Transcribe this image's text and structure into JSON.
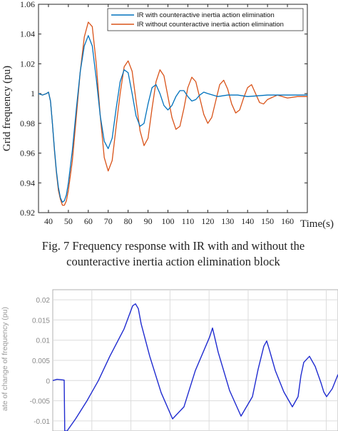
{
  "chart_data": [
    {
      "type": "line",
      "title": "",
      "xlabel": "Time(s)",
      "ylabel": "Grid frequency (pu)",
      "xlim": [
        35,
        170
      ],
      "ylim": [
        0.92,
        1.06
      ],
      "xticks": [
        "40",
        "50",
        "60",
        "70",
        "80",
        "90",
        "100",
        "110",
        "120",
        "130",
        "140",
        "150",
        "160"
      ],
      "yticks": [
        "0.92",
        "0.94",
        "0.96",
        "0.98",
        "1",
        "1.02",
        "1.04",
        "1.06"
      ],
      "legend_position": "top-right",
      "grid": false,
      "series": [
        {
          "name": "IR with counteractive inertia action elimination",
          "color": "#0072bd",
          "x": [
            35,
            37,
            39,
            40,
            41,
            42,
            43,
            44,
            45,
            46,
            47,
            48,
            49,
            50,
            52,
            54,
            56,
            58,
            60,
            62,
            64,
            66,
            68,
            70,
            72,
            74,
            76,
            78,
            80,
            82,
            84,
            86,
            88,
            90,
            92,
            94,
            96,
            98,
            100,
            102,
            104,
            106,
            108,
            110,
            112,
            114,
            116,
            118,
            120,
            125,
            130,
            135,
            140,
            150,
            160,
            170
          ],
          "y": [
            1.0,
            0.999,
            1.0,
            1.001,
            0.995,
            0.98,
            0.963,
            0.948,
            0.937,
            0.93,
            0.927,
            0.928,
            0.932,
            0.94,
            0.962,
            0.99,
            1.015,
            1.032,
            1.039,
            1.032,
            1.01,
            0.985,
            0.968,
            0.963,
            0.97,
            0.99,
            1.008,
            1.016,
            1.014,
            1.0,
            0.985,
            0.978,
            0.98,
            0.993,
            1.004,
            1.006,
            1.0,
            0.992,
            0.989,
            0.992,
            0.998,
            1.002,
            1.002,
            0.998,
            0.995,
            0.996,
            0.999,
            1.001,
            1.0,
            0.998,
            0.999,
            0.999,
            0.998,
            0.999,
            0.999,
            0.999
          ]
        },
        {
          "name": "IR without counteractive inertia action elimination",
          "color": "#d95319",
          "x": [
            35,
            37,
            39,
            40,
            41,
            42,
            43,
            44,
            45,
            46,
            47,
            48,
            49,
            50,
            52,
            54,
            56,
            58,
            60,
            62,
            64,
            66,
            68,
            70,
            72,
            74,
            76,
            78,
            80,
            82,
            84,
            86,
            88,
            90,
            92,
            94,
            96,
            98,
            100,
            102,
            104,
            106,
            108,
            110,
            112,
            114,
            116,
            118,
            120,
            122,
            124,
            126,
            128,
            130,
            132,
            134,
            136,
            138,
            140,
            142,
            144,
            146,
            148,
            150,
            155,
            160,
            165,
            170
          ],
          "y": [
            1.0,
            0.999,
            1.0,
            1.001,
            0.995,
            0.98,
            0.962,
            0.947,
            0.935,
            0.929,
            0.925,
            0.925,
            0.928,
            0.935,
            0.955,
            0.985,
            1.015,
            1.038,
            1.048,
            1.045,
            1.02,
            0.985,
            0.957,
            0.948,
            0.955,
            0.978,
            1.0,
            1.018,
            1.022,
            1.015,
            0.995,
            0.975,
            0.965,
            0.97,
            0.99,
            1.008,
            1.016,
            1.012,
            0.998,
            0.984,
            0.976,
            0.978,
            0.99,
            1.004,
            1.011,
            1.008,
            0.997,
            0.986,
            0.98,
            0.984,
            0.995,
            1.006,
            1.009,
            1.003,
            0.993,
            0.987,
            0.989,
            0.997,
            1.004,
            1.006,
            1.0,
            0.994,
            0.993,
            0.996,
            0.999,
            0.997,
            0.998,
            0.998
          ]
        }
      ]
    },
    {
      "type": "line",
      "title": "",
      "xlabel": "",
      "ylabel": "ate of change of frequency (pu)",
      "yticks": [
        "0.02",
        "0.015",
        "0.01",
        "0.005",
        "0",
        "-0.005",
        "-0.01"
      ],
      "ylim": [
        -0.0125,
        0.0225
      ],
      "xlim": [
        0,
        100
      ],
      "grid": true,
      "series": [
        {
          "color": "#1f2bd0",
          "x": [
            0,
            1.5,
            3,
            4,
            4.2,
            5,
            8,
            12,
            16,
            20,
            25,
            28,
            29,
            30,
            31,
            34,
            38,
            42,
            46,
            50,
            55,
            56,
            58,
            62,
            66,
            70,
            72,
            74,
            75,
            76,
            78,
            81,
            84,
            86,
            87,
            88,
            90,
            92,
            94,
            95,
            96,
            98,
            100
          ],
          "y": [
            0,
            0.0003,
            0.0002,
            0.0001,
            -0.0125,
            -0.0125,
            -0.0095,
            -0.005,
            0,
            0.006,
            0.0128,
            0.0185,
            0.019,
            0.0178,
            0.014,
            0.006,
            -0.003,
            -0.0095,
            -0.0065,
            0.0025,
            0.0108,
            0.013,
            0.007,
            -0.0025,
            -0.0088,
            -0.004,
            0.0028,
            0.0085,
            0.0098,
            0.0075,
            0.0025,
            -0.0028,
            -0.0065,
            -0.004,
            0.0012,
            0.0045,
            0.006,
            0.0035,
            -0.0005,
            -0.0028,
            -0.004,
            -0.002,
            0.0015
          ]
        }
      ]
    }
  ],
  "caption": {
    "line1": "Fig. 7 Frequency response with IR with and without the",
    "line2": "counteractive inertia action elimination block"
  }
}
